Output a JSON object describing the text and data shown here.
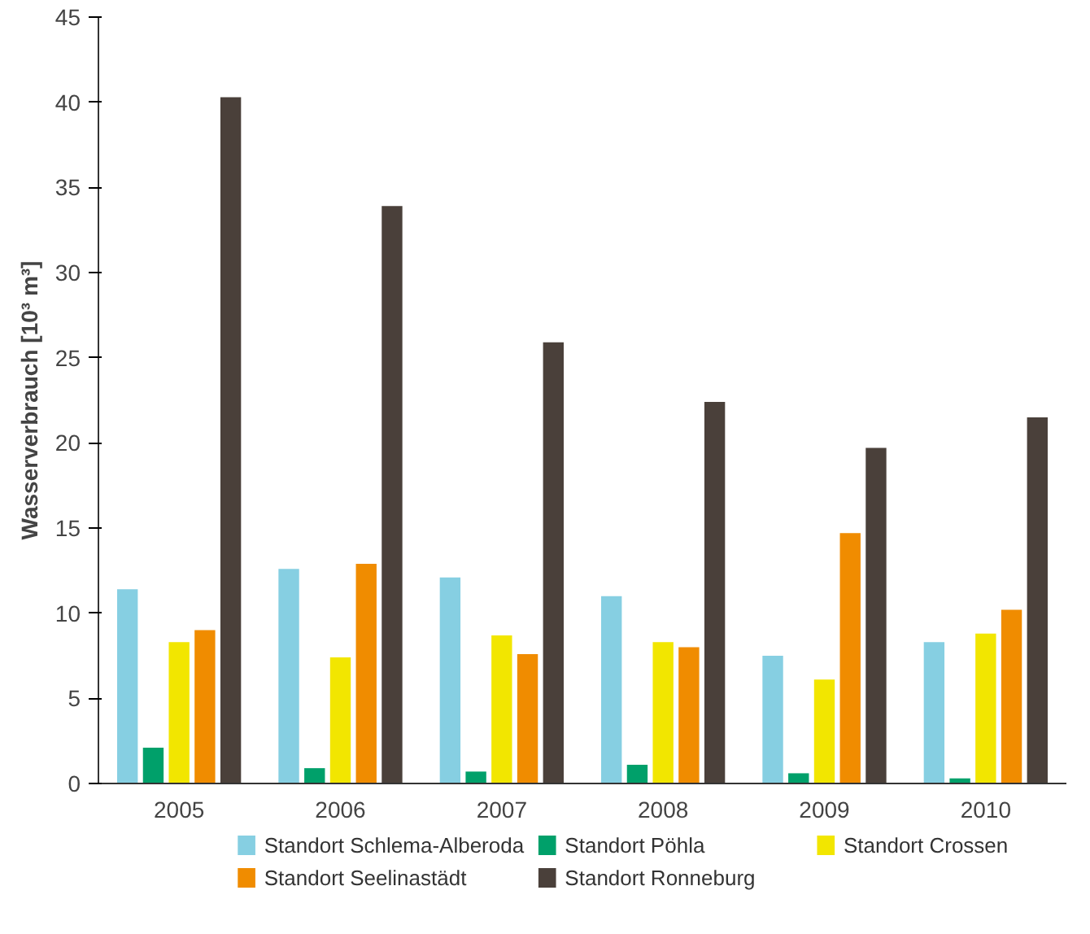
{
  "chart_data": {
    "type": "bar",
    "ylabel": "Wasserverbrauch [10³ m³]",
    "categories": [
      "2005",
      "2006",
      "2007",
      "2008",
      "2009",
      "2010"
    ],
    "ylim": [
      0,
      45
    ],
    "yticks": [
      0,
      5,
      10,
      15,
      20,
      25,
      30,
      35,
      40,
      45
    ],
    "grid": false,
    "legend": "bottom",
    "series": [
      {
        "name": "Standort Schlema-Alberoda",
        "color": "#86cfe2",
        "values": [
          11.4,
          12.6,
          12.1,
          11.0,
          7.5,
          8.3
        ]
      },
      {
        "name": "Standort Pöhla",
        "color": "#00a06a",
        "values": [
          2.1,
          0.9,
          0.7,
          1.1,
          0.6,
          0.3
        ]
      },
      {
        "name": "Standort Crossen",
        "color": "#f2e600",
        "values": [
          8.3,
          7.4,
          8.7,
          8.3,
          6.1,
          8.8
        ]
      },
      {
        "name": "Standort Seelinastädt",
        "color": "#f08c00",
        "values": [
          9.0,
          12.9,
          7.6,
          8.0,
          14.7,
          10.2
        ]
      },
      {
        "name": "Standort Ronneburg",
        "color": "#4a403a",
        "values": [
          40.3,
          33.9,
          25.9,
          22.4,
          19.7,
          21.5
        ]
      }
    ]
  }
}
